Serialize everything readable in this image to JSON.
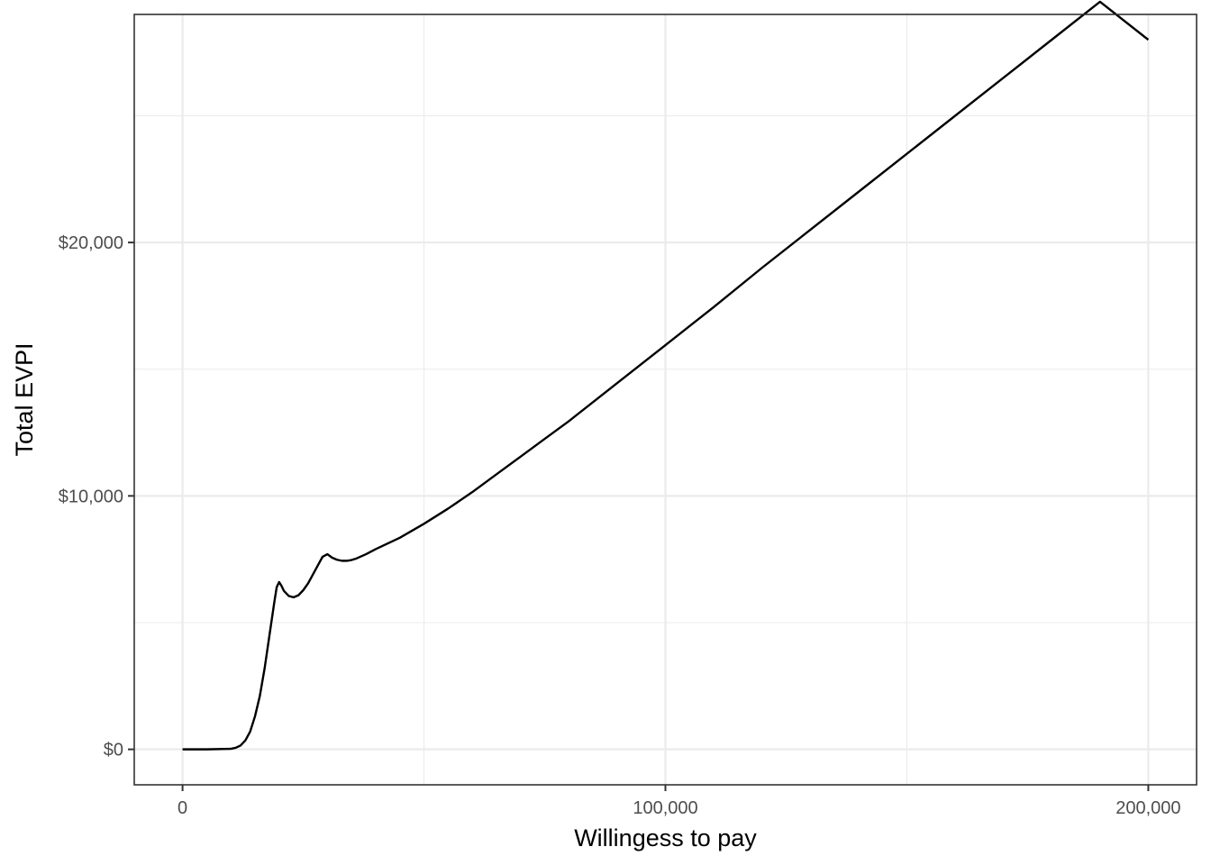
{
  "chart_data": {
    "type": "line",
    "title": "",
    "xlabel": "Willingess to pay",
    "ylabel": "Total EVPI",
    "xlim": [
      -10000,
      210000
    ],
    "ylim": [
      -1400,
      29000
    ],
    "x_ticks": [
      0,
      100000,
      200000
    ],
    "x_tick_labels": [
      "0",
      "100,000",
      "200,000"
    ],
    "x_minor_ticks": [
      50000,
      150000
    ],
    "y_ticks": [
      0,
      10000,
      20000
    ],
    "y_tick_labels": [
      "$0",
      "$10,000",
      "$20,000"
    ],
    "y_minor_ticks": [
      5000,
      15000,
      25000
    ],
    "grid": true,
    "legend": "none",
    "line_color": "#000000",
    "series": [
      {
        "x": [
          0,
          5000,
          10000,
          11000,
          12000,
          13000,
          14000,
          15000,
          16000,
          17000,
          18000,
          19000,
          19500,
          20000,
          20500,
          21000,
          22000,
          23000,
          24000,
          25000,
          26000,
          27000,
          28000,
          29000,
          30000,
          31000,
          32000,
          33000,
          34000,
          35000,
          36000,
          38000,
          40000,
          45000,
          50000,
          55000,
          60000,
          65000,
          70000,
          75000,
          80000,
          90000,
          100000,
          110000,
          120000,
          130000,
          140000,
          150000,
          160000,
          170000,
          180000,
          190000,
          200000
        ],
        "y": [
          0,
          0,
          20,
          60,
          150,
          350,
          700,
          1300,
          2100,
          3200,
          4500,
          5800,
          6400,
          6600,
          6450,
          6250,
          6050,
          6000,
          6080,
          6280,
          6550,
          6900,
          7250,
          7600,
          7700,
          7560,
          7480,
          7440,
          7440,
          7470,
          7530,
          7700,
          7900,
          8350,
          8900,
          9500,
          10150,
          10850,
          11550,
          12250,
          12950,
          14450,
          15950,
          17450,
          19000,
          20500,
          22000,
          23500,
          25000,
          26500,
          28000,
          29500,
          28000
        ]
      }
    ]
  }
}
